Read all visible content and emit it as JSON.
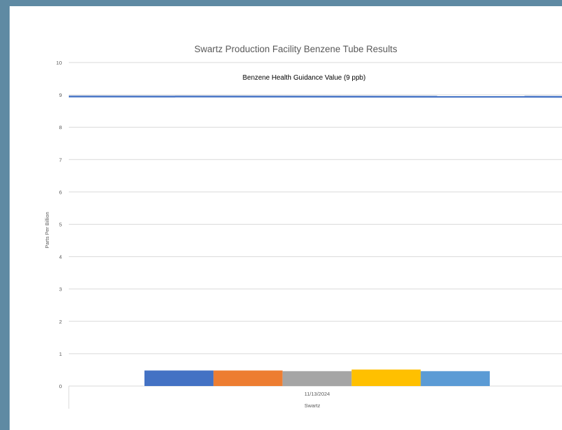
{
  "chart_data": {
    "type": "bar",
    "title": "Swartz Production Facility Benzene Tube Results",
    "ylabel": "Parts Per Billion",
    "xlabel": "Swartz",
    "categories": [
      "11/13/2024"
    ],
    "ylim": [
      0,
      10
    ],
    "yticks": [
      0,
      1,
      2,
      3,
      4,
      5,
      6,
      7,
      8,
      9,
      10
    ],
    "series": [
      {
        "values": [
          0.48
        ],
        "color": "#4472c4"
      },
      {
        "values": [
          0.48
        ],
        "color": "#ed7d31"
      },
      {
        "values": [
          0.46
        ],
        "color": "#a5a5a5"
      },
      {
        "values": [
          0.51
        ],
        "color": "#ffc000"
      },
      {
        "values": [
          0.46
        ],
        "color": "#5b9bd5"
      }
    ],
    "reference_line": {
      "label": "Benzene Health Guidance Value (9 ppb)",
      "value": 8.95,
      "color": "#4472c4"
    },
    "grid": true,
    "legend": "none"
  }
}
